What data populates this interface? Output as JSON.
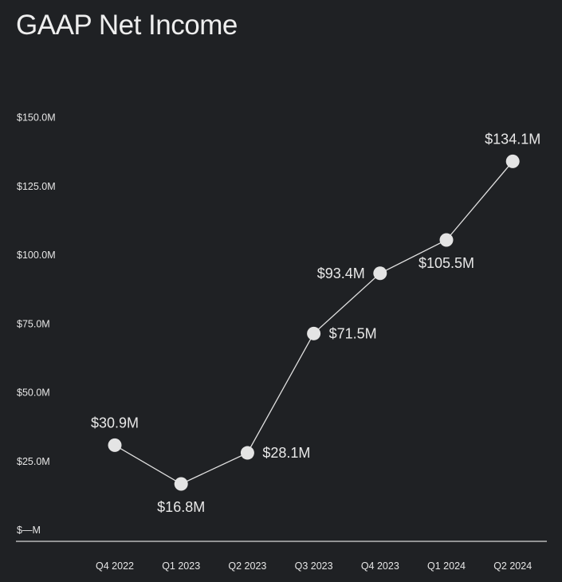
{
  "chart_data": {
    "type": "line",
    "title": "GAAP Net Income",
    "xlabel": "",
    "ylabel": "",
    "categories": [
      "Q4 2022",
      "Q1 2023",
      "Q2 2023",
      "Q3 2023",
      "Q4 2023",
      "Q1 2024",
      "Q2 2024"
    ],
    "series": [
      {
        "values": [
          30.9,
          16.8,
          28.1,
          71.5,
          93.4,
          105.5,
          134.1
        ],
        "labels": [
          "$30.9M",
          "$16.8M",
          "$28.1M",
          "$71.5M",
          "$93.4M",
          "$105.5M",
          "$134.1M"
        ]
      }
    ],
    "y_ticks": [
      0,
      25,
      50,
      75,
      100,
      125,
      150
    ],
    "y_tick_labels": [
      "$—M",
      "$25.0M",
      "$50.0M",
      "$75.0M",
      "$100.0M",
      "$125.0M",
      "$150.0M"
    ],
    "ylim": [
      0,
      150
    ],
    "grid": false,
    "legend": "none",
    "colors": {
      "background": "#1f2124",
      "line": "#e0e0e0",
      "marker": "#e4e4e4",
      "text": "#ececec",
      "axis": "#d8d8d8"
    }
  }
}
